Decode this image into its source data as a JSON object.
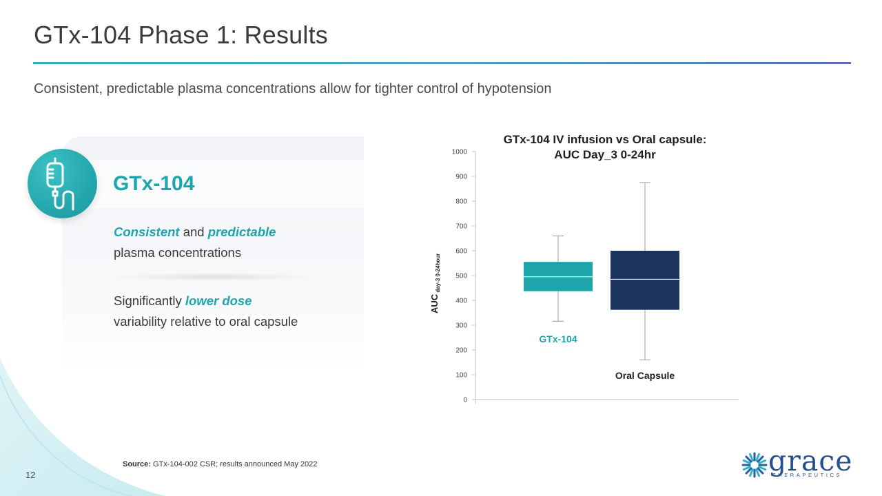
{
  "slide": {
    "title": "GTx-104 Phase 1: Results",
    "subtitle": "Consistent, predictable plasma concentrations allow for tighter control of hypotension",
    "page_number": "12"
  },
  "card": {
    "title": "GTx-104",
    "point1": {
      "part1": "Consistent",
      "part2": " and ",
      "part3": "predictable",
      "part4": "plasma concentrations"
    },
    "point2": {
      "part1": "Significantly ",
      "part2": "lower dose",
      "part3": "variability relative to oral capsule"
    }
  },
  "footer": {
    "source_label": "Source:",
    "source_text": " GTx-104-002 CSR; results announced May 2022"
  },
  "logo": {
    "word": "grace",
    "tagline": "THERAPEUTICS"
  },
  "colors": {
    "teal": "#1ea5ab",
    "navy": "#1c355e",
    "logo_blue": "#254f8f"
  },
  "chart_data": {
    "type": "boxplot",
    "title_line1": "GTx-104 IV infusion vs Oral capsule:",
    "title_line2": "AUC Day_3 0-24hr",
    "ylabel_main": "AUC",
    "ylabel_sub": "day-3 0-24hour",
    "ylim": [
      0,
      1000
    ],
    "yticks": [
      0,
      100,
      200,
      300,
      400,
      500,
      600,
      700,
      800,
      900,
      1000
    ],
    "series": [
      {
        "name": "GTx-104",
        "min": 316,
        "q1": 437,
        "median": 495,
        "q3": 555,
        "max": 660,
        "color": "#1ea5ab",
        "label_position": "below"
      },
      {
        "name": "Oral Capsule",
        "min": 160,
        "q1": 362,
        "median": 485,
        "q3": 600,
        "max": 875,
        "color": "#1c355e",
        "label_position": "bottom"
      }
    ]
  }
}
